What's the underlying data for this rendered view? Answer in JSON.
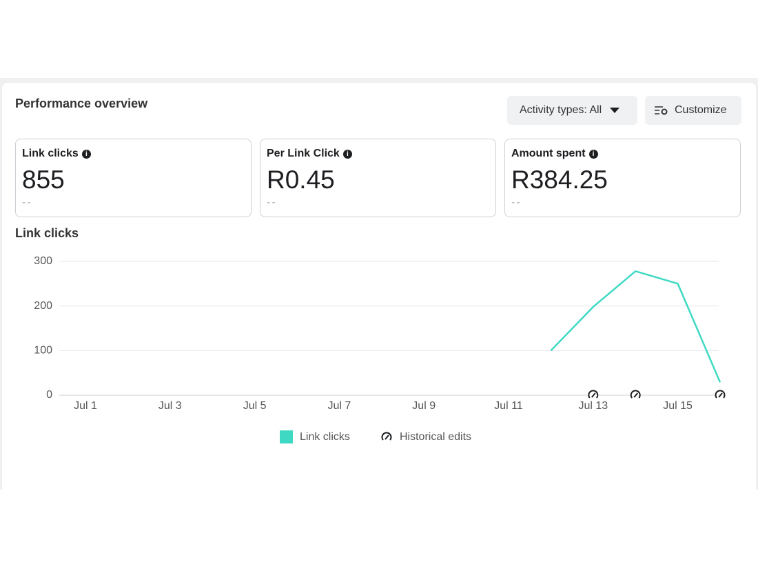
{
  "header": {
    "title": "Performance overview",
    "buttons": [
      "Activity types: All",
      "Customize"
    ]
  },
  "metrics": [
    {
      "label": "Link clicks",
      "value": "855",
      "change": "--"
    },
    {
      "label": "Per Link Click",
      "value": "R0.45",
      "change": "--"
    },
    {
      "label": "Amount spent",
      "value": "R384.25",
      "change": "--"
    }
  ],
  "chart_data": {
    "type": "line",
    "title": "Link clicks",
    "categories": [
      "Jul 1",
      null,
      "Jul 3",
      null,
      "Jul 5",
      null,
      "Jul 7",
      null,
      "Jul 9",
      null,
      "Jul 11",
      null,
      "Jul 13",
      null,
      "Jul 15",
      null
    ],
    "series": [
      {
        "name": "Link clicks",
        "color": "#3fd9c3",
        "values": [
          null,
          null,
          null,
          null,
          null,
          null,
          null,
          null,
          null,
          null,
          null,
          100,
          198,
          278,
          250,
          29
        ]
      },
      {
        "name": "Historical edits",
        "color": "#1c1e21",
        "values": [
          null,
          null,
          null,
          null,
          null,
          null,
          null,
          null,
          null,
          null,
          null,
          null,
          0,
          0,
          null,
          0
        ]
      }
    ],
    "ylim": [
      0,
      300
    ],
    "yticks": [
      0,
      100,
      200,
      300
    ],
    "grid": true
  }
}
